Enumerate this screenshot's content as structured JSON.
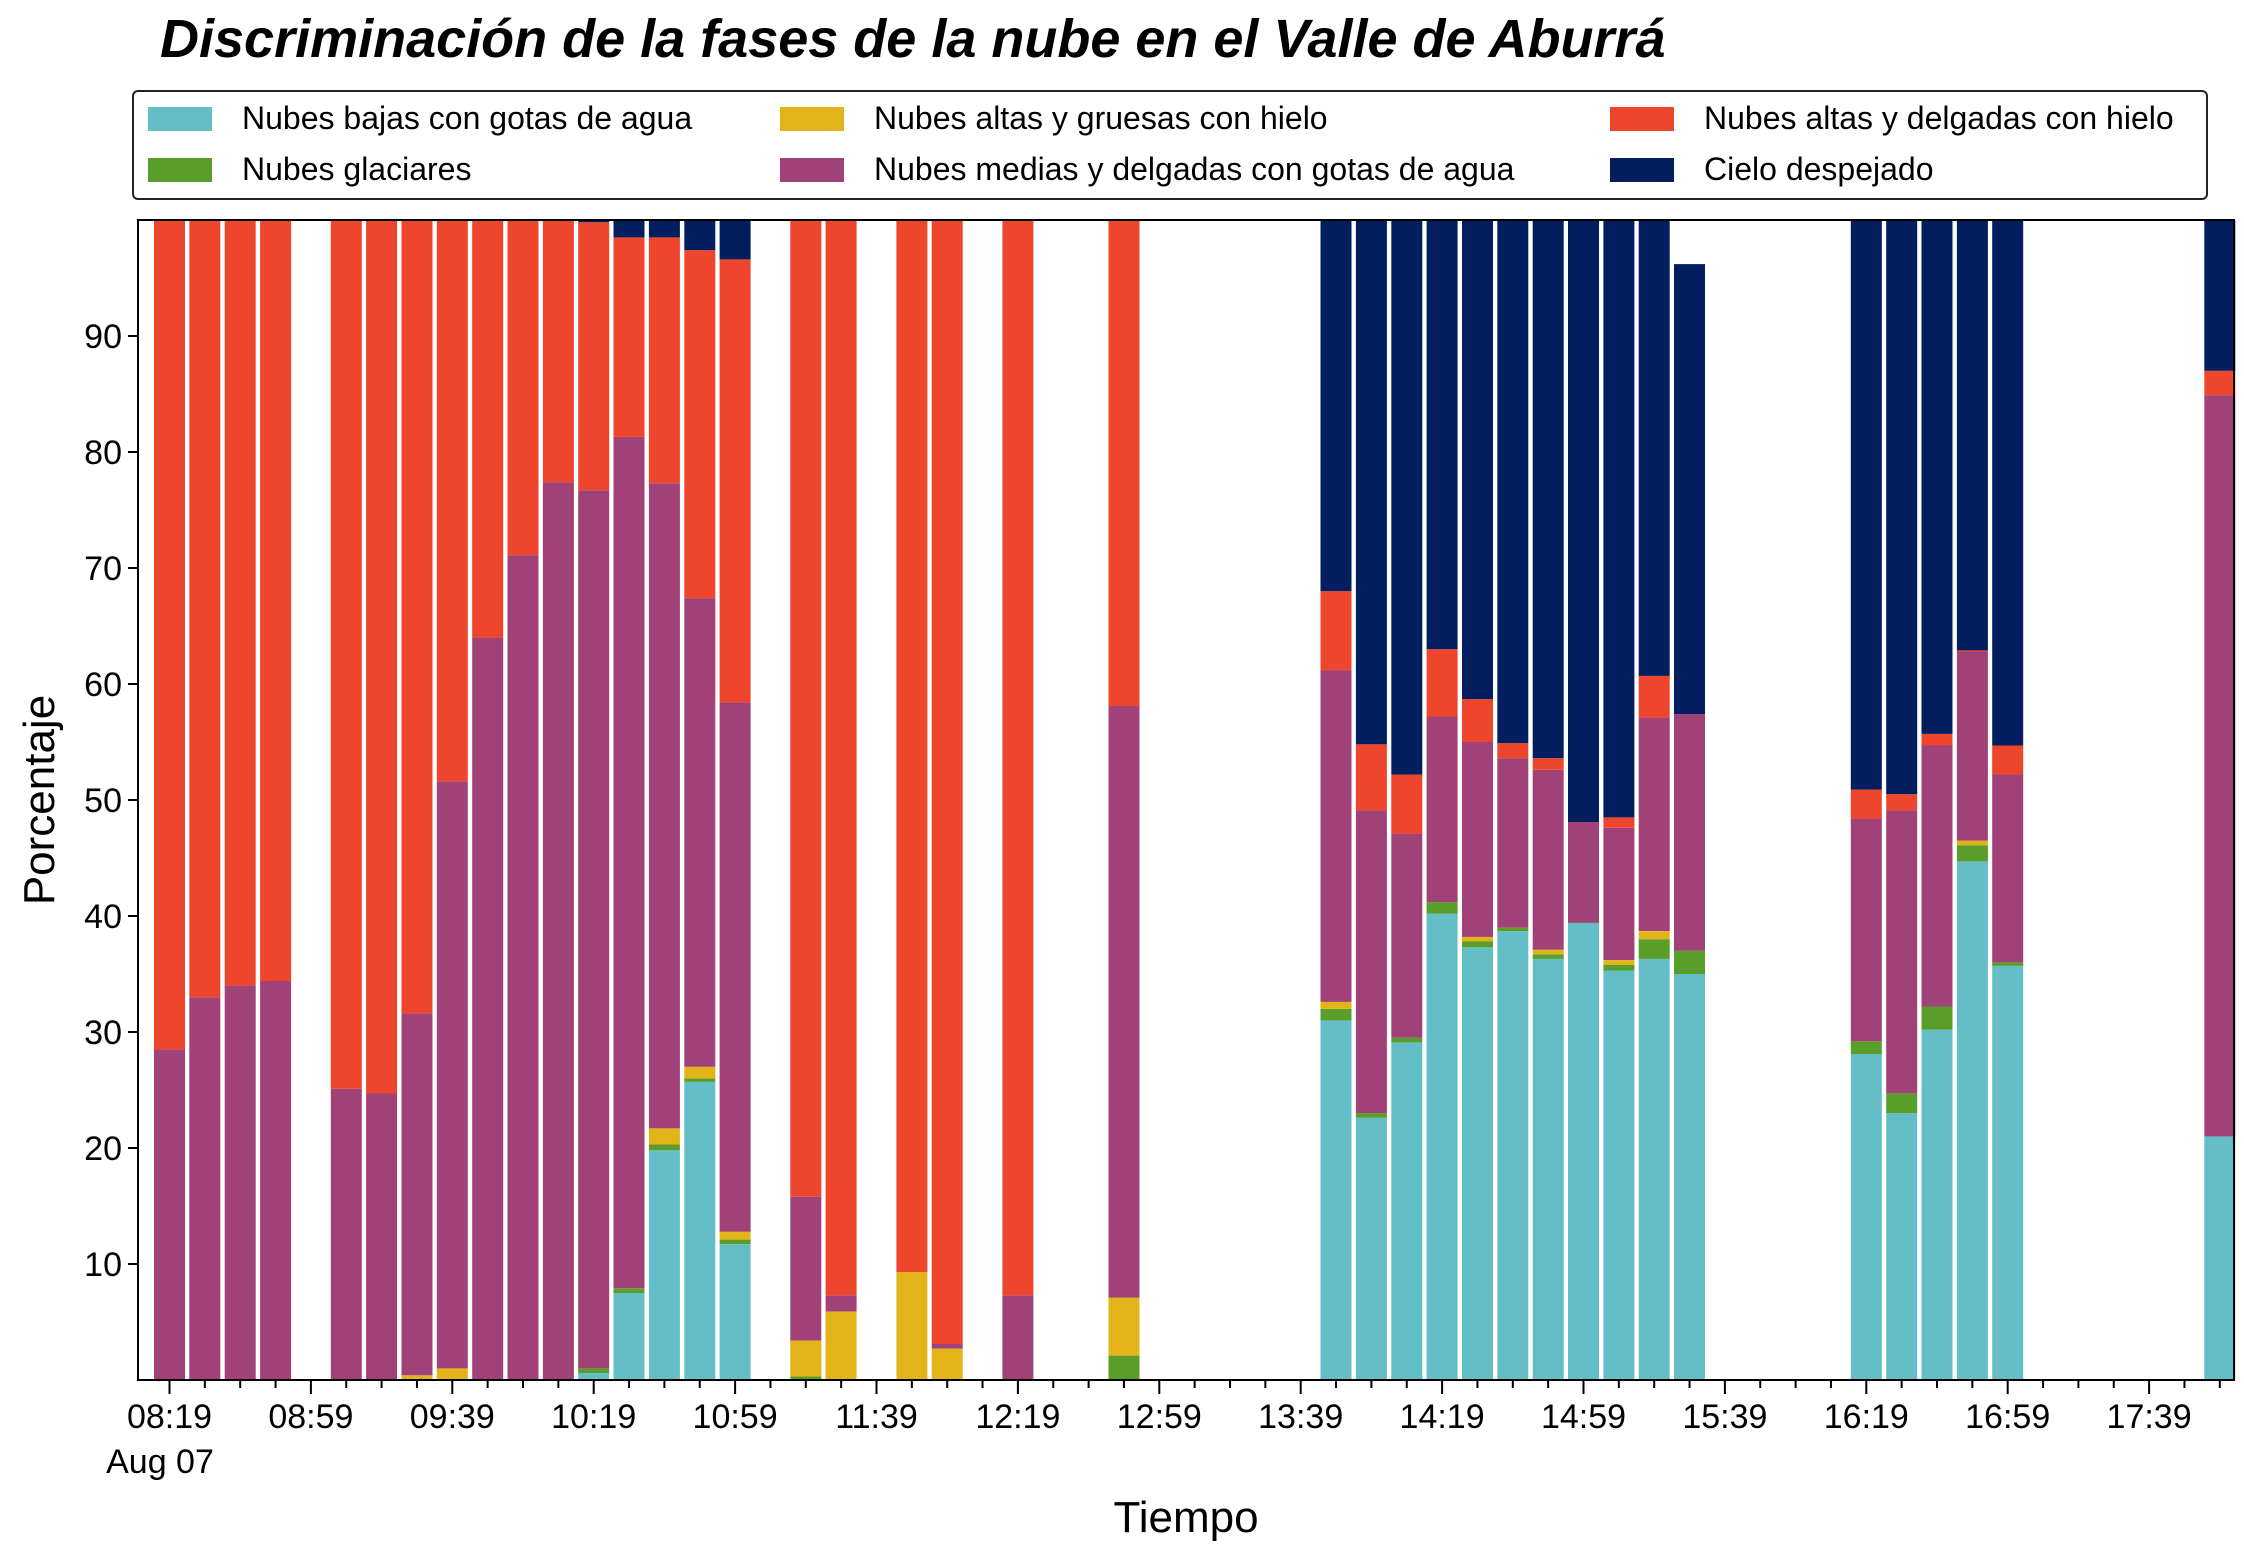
{
  "chart_data": {
    "type": "bar",
    "stacked": true,
    "title": "Discriminación de la fases de la nube en el Valle de Aburrá",
    "xlabel": "Tiempo",
    "ylabel": "Porcentaje",
    "ylim": [
      0,
      100
    ],
    "yticks": [
      10,
      20,
      30,
      40,
      50,
      60,
      70,
      80,
      90
    ],
    "x_start": "08:19",
    "x_step_minutes": 10,
    "x_count": 59,
    "x_major_labels": [
      "08:19",
      "08:59",
      "09:39",
      "10:19",
      "10:59",
      "11:39",
      "12:19",
      "12:59",
      "13:39",
      "14:19",
      "14:59",
      "15:39",
      "16:19",
      "16:59",
      "17:39"
    ],
    "x_date_label": "Aug 07",
    "legend_position": "top",
    "grid": false,
    "series": [
      {
        "name": "Nubes bajas con gotas de agua",
        "color": "#64bec8",
        "values": [
          0,
          0,
          0,
          0,
          null,
          0,
          0,
          0,
          0,
          0,
          0,
          0,
          0.6,
          7.5,
          19.8,
          25.7,
          11.7,
          null,
          0,
          0,
          null,
          0,
          0,
          null,
          0,
          null,
          null,
          0,
          null,
          null,
          null,
          null,
          null,
          31.0,
          22.6,
          29.1,
          40.2,
          37.3,
          38.7,
          36.3,
          39.4,
          35.3,
          36.3,
          35.0,
          null,
          null,
          null,
          null,
          28.1,
          23.0,
          30.2,
          44.7,
          35.7,
          null,
          null,
          null,
          null,
          null,
          21.0
        ]
      },
      {
        "name": "Nubes glaciares",
        "color": "#5a9e2a",
        "values": [
          0,
          0,
          0,
          0,
          null,
          0,
          0,
          0,
          0,
          0,
          0,
          0,
          0.4,
          0.4,
          0.5,
          0.3,
          0.4,
          null,
          0.3,
          0,
          null,
          0,
          0,
          null,
          0,
          null,
          null,
          2.1,
          null,
          null,
          null,
          null,
          null,
          1.0,
          0.4,
          0.4,
          1.0,
          0.5,
          0.3,
          0.4,
          0,
          0.5,
          1.7,
          2.0,
          null,
          null,
          null,
          null,
          1.1,
          1.7,
          2.0,
          1.4,
          0.3,
          null,
          null,
          null,
          null,
          null,
          0
        ]
      },
      {
        "name": "Nubes altas y gruesas con hielo",
        "color": "#e2b41a",
        "values": [
          0,
          0,
          0,
          0,
          null,
          0,
          0,
          0.4,
          1.0,
          0,
          0,
          0,
          0,
          0,
          1.4,
          1.0,
          0.7,
          null,
          3.1,
          5.9,
          null,
          9.3,
          2.7,
          null,
          0,
          null,
          null,
          5.0,
          null,
          null,
          null,
          null,
          null,
          0.6,
          0,
          0,
          0,
          0.4,
          0,
          0.4,
          0,
          0.4,
          0.7,
          0,
          null,
          null,
          null,
          null,
          0,
          0,
          0,
          0.4,
          0,
          null,
          null,
          null,
          null,
          null,
          0
        ]
      },
      {
        "name": "Nubes medias y delgadas con gotas de agua",
        "color": "#a04178",
        "values": [
          28.5,
          33.0,
          34.0,
          34.4,
          null,
          25.1,
          24.7,
          31.2,
          50.6,
          64.0,
          71.1,
          77.4,
          75.7,
          73.4,
          55.6,
          40.4,
          45.6,
          null,
          12.4,
          1.4,
          null,
          0,
          0.4,
          null,
          7.3,
          null,
          null,
          51.0,
          null,
          null,
          null,
          null,
          null,
          28.6,
          26.1,
          17.6,
          16.0,
          16.8,
          14.6,
          15.5,
          8.7,
          11.4,
          18.4,
          20.4,
          null,
          null,
          null,
          null,
          19.2,
          24.4,
          22.5,
          16.3,
          16.2,
          null,
          null,
          null,
          null,
          null,
          63.9
        ]
      },
      {
        "name": "Nubes altas y delgadas con hielo",
        "color": "#ee462d",
        "values": [
          71.5,
          67.0,
          66.0,
          65.6,
          null,
          74.9,
          75.3,
          68.4,
          48.4,
          36.0,
          28.9,
          22.6,
          23.1,
          17.2,
          21.2,
          30.0,
          38.2,
          null,
          84.2,
          92.7,
          null,
          90.7,
          96.9,
          null,
          92.7,
          null,
          null,
          41.9,
          null,
          null,
          null,
          null,
          null,
          6.8,
          5.7,
          5.1,
          5.8,
          3.7,
          1.3,
          1.0,
          0,
          0.9,
          3.6,
          0,
          null,
          null,
          null,
          null,
          2.5,
          1.4,
          1.0,
          0.1,
          2.5,
          null,
          null,
          null,
          null,
          null,
          2.1
        ]
      },
      {
        "name": "Cielo despejado",
        "color": "#031e5e",
        "values": [
          0,
          0,
          0,
          0,
          null,
          0,
          0,
          0,
          0,
          0,
          0,
          0,
          0.2,
          1.5,
          1.5,
          2.6,
          3.4,
          null,
          0,
          0,
          null,
          0,
          0,
          null,
          0,
          null,
          null,
          0,
          null,
          null,
          null,
          null,
          null,
          32.0,
          45.2,
          47.8,
          37.0,
          41.3,
          45.1,
          46.4,
          51.9,
          52.3,
          41.9,
          38.8,
          null,
          null,
          null,
          null,
          49.1,
          49.5,
          44.3,
          37.1,
          45.3,
          null,
          null,
          null,
          null,
          null,
          13.0
        ]
      }
    ]
  }
}
